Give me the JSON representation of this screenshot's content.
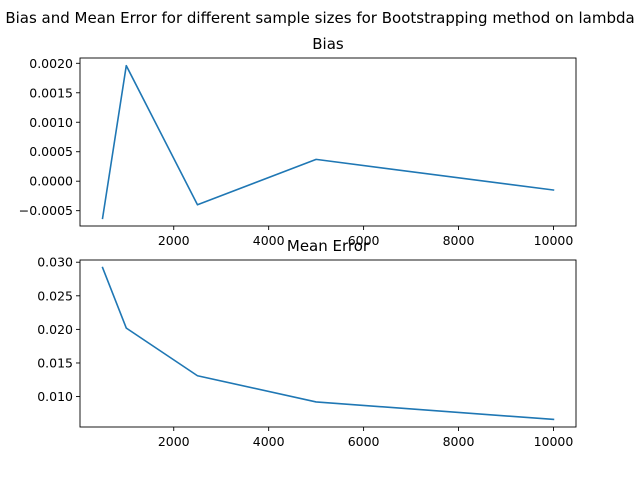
{
  "figure": {
    "suptitle": "Bias and Mean Error for different sample sizes for Bootstrapping method on lambda"
  },
  "colors": {
    "line": "#1f77b4",
    "axes": "#000000",
    "background": "#ffffff"
  },
  "chart_data": [
    {
      "type": "line",
      "title": "Bias",
      "xlabel": "",
      "ylabel": "",
      "grid": false,
      "x": [
        500,
        1000,
        2500,
        5000,
        10000
      ],
      "y": [
        -0.00063,
        0.00196,
        -0.0004,
        0.00037,
        -0.00015
      ],
      "xlim": [
        25,
        10475
      ],
      "ylim": [
        -0.00076,
        0.00209
      ],
      "xticks": [
        2000,
        4000,
        6000,
        8000,
        10000
      ],
      "xtick_labels": [
        "2000",
        "4000",
        "6000",
        "8000",
        "10000"
      ],
      "yticks": [
        -0.0005,
        0.0,
        0.0005,
        0.001,
        0.0015,
        0.002
      ],
      "ytick_labels": [
        "−0.0005",
        "0.0000",
        "0.0005",
        "0.0010",
        "0.0015",
        "0.0020"
      ]
    },
    {
      "type": "line",
      "title": "Mean Error",
      "xlabel": "",
      "ylabel": "",
      "grid": false,
      "x": [
        500,
        1000,
        2500,
        5000,
        10000
      ],
      "y": [
        0.0292,
        0.0202,
        0.0131,
        0.0092,
        0.0066
      ],
      "xlim": [
        25,
        10475
      ],
      "ylim": [
        0.00547,
        0.03033
      ],
      "xticks": [
        2000,
        4000,
        6000,
        8000,
        10000
      ],
      "xtick_labels": [
        "2000",
        "4000",
        "6000",
        "8000",
        "10000"
      ],
      "yticks": [
        0.01,
        0.015,
        0.02,
        0.025,
        0.03
      ],
      "ytick_labels": [
        "0.010",
        "0.015",
        "0.020",
        "0.025",
        "0.030"
      ]
    }
  ]
}
